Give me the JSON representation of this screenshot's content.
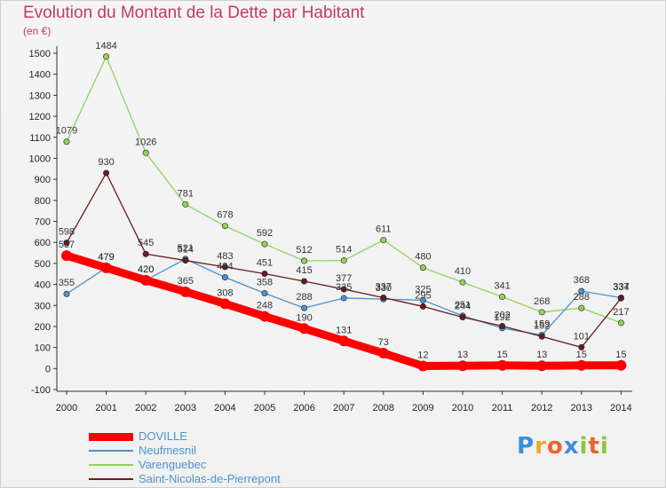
{
  "chart_data": {
    "type": "line",
    "title": "Evolution du Montant de la Dette par Habitant",
    "subtitle": "(en €)",
    "x": [
      "2000",
      "2001",
      "2002",
      "2003",
      "2004",
      "2005",
      "2006",
      "2007",
      "2008",
      "2009",
      "2010",
      "2011",
      "2012",
      "2013",
      "2014"
    ],
    "ylim": [
      -100,
      1500
    ],
    "yticks": [
      -100,
      0,
      100,
      200,
      300,
      400,
      500,
      600,
      700,
      800,
      900,
      1000,
      1100,
      1200,
      1300,
      1400,
      1500
    ],
    "grid": false,
    "legend_position": "bottom-left",
    "series": [
      {
        "name": "DOVILLE",
        "color": "#ff0000",
        "values": [
          537,
          479,
          420,
          365,
          308,
          248,
          190,
          131,
          73,
          12,
          13,
          15,
          13,
          15,
          15
        ]
      },
      {
        "name": "Neufmesnil",
        "color": "#4b93cf",
        "values": [
          355,
          479,
          420,
          521,
          434,
          358,
          288,
          335,
          330,
          325,
          251,
          192,
          159,
          368,
          337
        ]
      },
      {
        "name": "Varenguebec",
        "color": "#8ed45a",
        "values": [
          1079,
          1484,
          1026,
          781,
          678,
          592,
          512,
          514,
          611,
          480,
          410,
          341,
          268,
          288,
          217
        ]
      },
      {
        "name": "Saint-Nicolas-de-Pierrepont",
        "color": "#6b1a20",
        "values": [
          598,
          930,
          545,
          514,
          483,
          451,
          415,
          377,
          337,
          295,
          244,
          202,
          152,
          101,
          334
        ]
      }
    ]
  },
  "legend": {
    "items": [
      "DOVILLE",
      "Neufmesnil",
      "Varenguebec",
      "Saint-Nicolas-de-Pierrepont"
    ]
  },
  "brand": {
    "letters": [
      "P",
      "r",
      "o",
      "x",
      "i",
      "t",
      "i"
    ],
    "colors": [
      "#3d8ed8",
      "#f0a828",
      "#e8652a",
      "#3d8ed8",
      "#8cc63f",
      "#e8652a",
      "#8cc63f"
    ]
  }
}
